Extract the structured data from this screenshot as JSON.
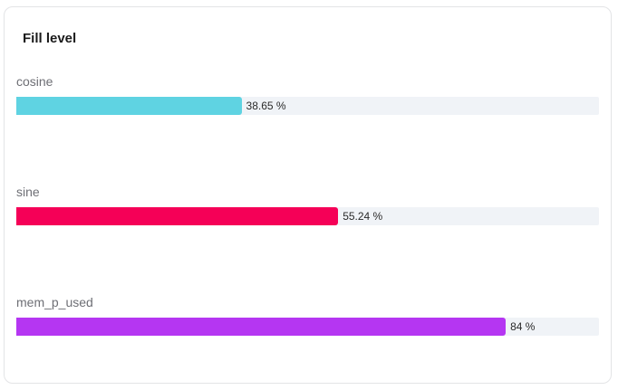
{
  "chart_data": {
    "type": "bar",
    "orientation": "horizontal",
    "title": "Fill level",
    "xlim": [
      0,
      100
    ],
    "series": [
      {
        "name": "cosine",
        "value": 38.65,
        "label": "38.65 %",
        "color": "#5fd3e2"
      },
      {
        "name": "sine",
        "value": 55.24,
        "label": "55.24 %",
        "color": "#f50057"
      },
      {
        "name": "mem_p_used",
        "value": 84,
        "label": "84 %",
        "color": "#b536f2"
      }
    ],
    "track_color": "#f0f3f7"
  }
}
